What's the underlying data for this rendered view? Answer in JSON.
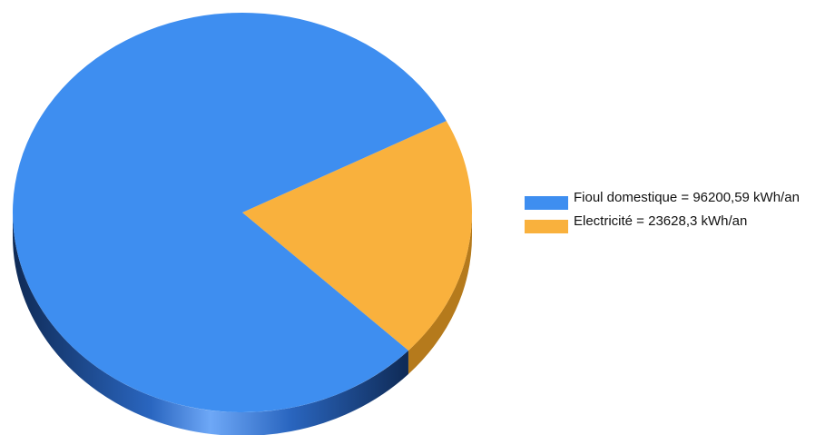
{
  "chart_data": {
    "type": "pie",
    "title": "",
    "three_d": true,
    "legend_position": "right",
    "slices": [
      {
        "label": "Fioul domestique = 96200,59 kWh/an",
        "name": "Fioul domestique",
        "value": 96200.59,
        "unit": "kWh/an",
        "color": "#3e8ef0",
        "side_color": "#2a63b0"
      },
      {
        "label": "Electricité = 23628,3 kWh/an",
        "name": "Electricité",
        "value": 23628.3,
        "unit": "kWh/an",
        "color": "#f9b13d",
        "side_color": "#b57a1c"
      }
    ]
  }
}
